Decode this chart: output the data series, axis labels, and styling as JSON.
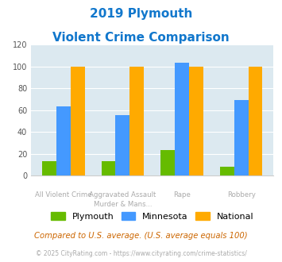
{
  "title_line1": "2019 Plymouth",
  "title_line2": "Violent Crime Comparison",
  "cat_labels_top": [
    "",
    "Aggravated Assault",
    "",
    ""
  ],
  "cat_labels_bottom": [
    "All Violent Crime",
    "Murder & Mans...",
    "Rape",
    "Robbery"
  ],
  "plymouth": [
    13,
    13,
    23,
    8
  ],
  "minnesota": [
    63,
    55,
    103,
    69
  ],
  "national": [
    100,
    100,
    100,
    100
  ],
  "colors": {
    "plymouth": "#66bb00",
    "minnesota": "#4499ff",
    "national": "#ffaa00"
  },
  "ylim": [
    0,
    120
  ],
  "yticks": [
    0,
    20,
    40,
    60,
    80,
    100,
    120
  ],
  "bg_color": "#dce9f0",
  "title_color": "#1177cc",
  "xlabel_color": "#aaaaaa",
  "footer_text": "Compared to U.S. average. (U.S. average equals 100)",
  "copyright_text": "© 2025 CityRating.com - https://www.cityrating.com/crime-statistics/",
  "footer_color": "#cc6600",
  "copyright_color": "#aaaaaa"
}
